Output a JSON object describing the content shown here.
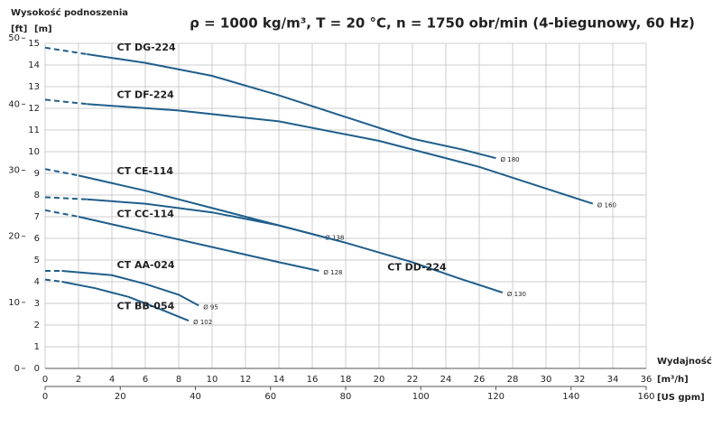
{
  "chart_data": {
    "type": "line",
    "title": "ρ = 1000 kg/m³, T = 20 °C, n = 1750 obr/min (4-biegunowy, 60 Hz)",
    "y_label": "Wysokość podnoszenia",
    "y_unit": "[m]",
    "y2_unit": "[ft]",
    "x_label": "Wydajność",
    "x_unit": "[m³/h]",
    "x2_unit": "[US gpm]",
    "xlim": [
      0,
      36
    ],
    "xticks": [
      0,
      2,
      4,
      6,
      8,
      10,
      12,
      14,
      16,
      18,
      20,
      22,
      24,
      26,
      28,
      30,
      32,
      34,
      36
    ],
    "x2lim": [
      0,
      160
    ],
    "x2ticks": [
      0,
      20,
      40,
      60,
      80,
      100,
      120,
      140,
      160
    ],
    "ylim": [
      0,
      15
    ],
    "yticks": [
      0,
      1,
      2,
      3,
      4,
      5,
      6,
      7,
      8,
      9,
      10,
      11,
      12,
      13,
      14,
      15
    ],
    "y2lim": [
      0,
      49.21
    ],
    "y2ticks": [
      0,
      10,
      20,
      30,
      40,
      50
    ],
    "grid": true,
    "series": [
      {
        "name": "CT DG-224",
        "end_label": "Ø 180",
        "color": "#1f5f8b",
        "x": [
          0,
          2.5,
          6,
          10,
          14,
          18,
          22,
          25,
          27
        ],
        "values": [
          14.8,
          14.5,
          14.1,
          13.5,
          12.6,
          11.6,
          10.6,
          10.1,
          9.7
        ]
      },
      {
        "name": "CT DF-224",
        "end_label": "Ø 160",
        "color": "#1f5f8b",
        "x": [
          0,
          2.5,
          8,
          14,
          20,
          26,
          30,
          32.8
        ],
        "values": [
          12.4,
          12.2,
          11.9,
          11.4,
          10.5,
          9.3,
          8.3,
          7.6
        ]
      },
      {
        "name": "CT CE-114",
        "end_label": "Ø 138",
        "color": "#1f5f8b",
        "x": [
          0,
          2,
          6,
          10,
          14,
          16.5
        ],
        "values": [
          9.2,
          8.9,
          8.2,
          7.4,
          6.6,
          6.1
        ]
      },
      {
        "name": "CT DD-224",
        "end_label": "Ø 130",
        "color": "#1f5f8b",
        "x": [
          0,
          2.5,
          6,
          10,
          14,
          18,
          22,
          25,
          27.4
        ],
        "values": [
          7.9,
          7.8,
          7.6,
          7.2,
          6.6,
          5.8,
          4.9,
          4.1,
          3.5
        ]
      },
      {
        "name": "CT CC-114",
        "end_label": "Ø 128",
        "color": "#1f5f8b",
        "x": [
          0,
          2,
          6,
          10,
          14,
          16.4
        ],
        "values": [
          7.3,
          7.0,
          6.3,
          5.6,
          4.9,
          4.5
        ]
      },
      {
        "name": "CT AA-024",
        "end_label": "Ø 95",
        "color": "#1f5f8b",
        "x": [
          0,
          1,
          4,
          6,
          8,
          9.2
        ],
        "values": [
          4.5,
          4.5,
          4.3,
          3.9,
          3.4,
          2.9
        ]
      },
      {
        "name": "CT BB-054",
        "end_label": "Ø 102",
        "color": "#1f5f8b",
        "x": [
          0,
          1,
          3,
          5,
          7,
          8.6
        ],
        "values": [
          4.1,
          4.0,
          3.7,
          3.3,
          2.7,
          2.2
        ]
      }
    ]
  }
}
